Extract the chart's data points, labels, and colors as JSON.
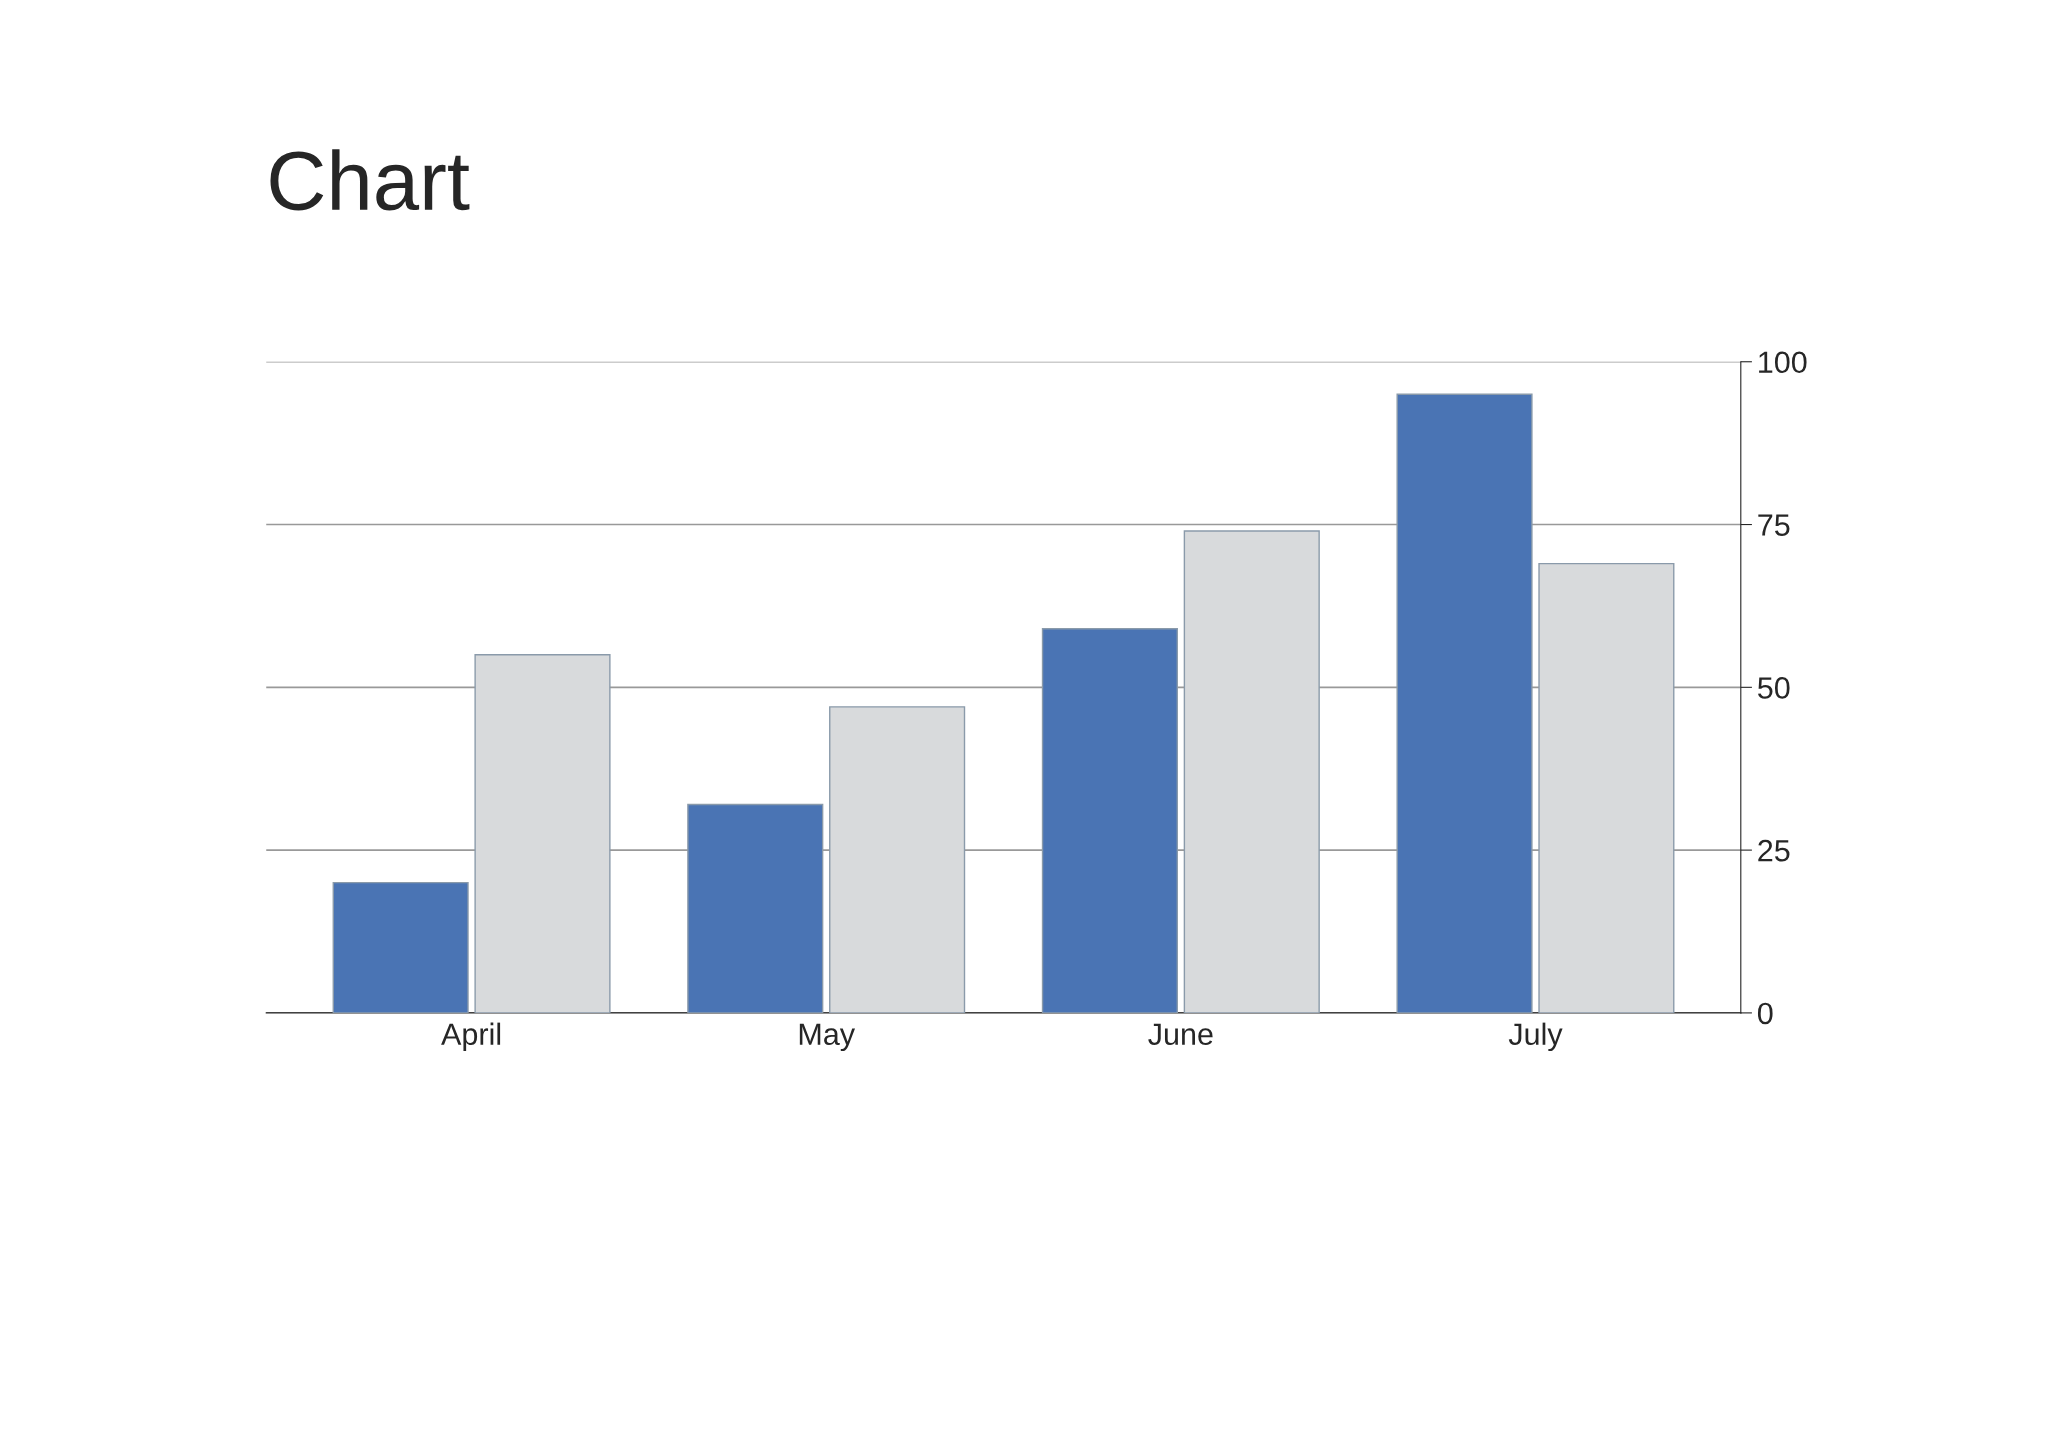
{
  "chart_data": {
    "type": "bar",
    "title": "Chart",
    "categories": [
      "April",
      "May",
      "June",
      "July"
    ],
    "series": [
      {
        "color": "#4a74b4",
        "values": [
          20,
          32,
          59,
          95
        ]
      },
      {
        "color": "#d8dadc",
        "values": [
          55,
          47,
          74,
          69
        ]
      }
    ],
    "ylim": [
      0,
      100
    ],
    "yticks": [
      0,
      25,
      50,
      75,
      100
    ],
    "grid": "y"
  }
}
